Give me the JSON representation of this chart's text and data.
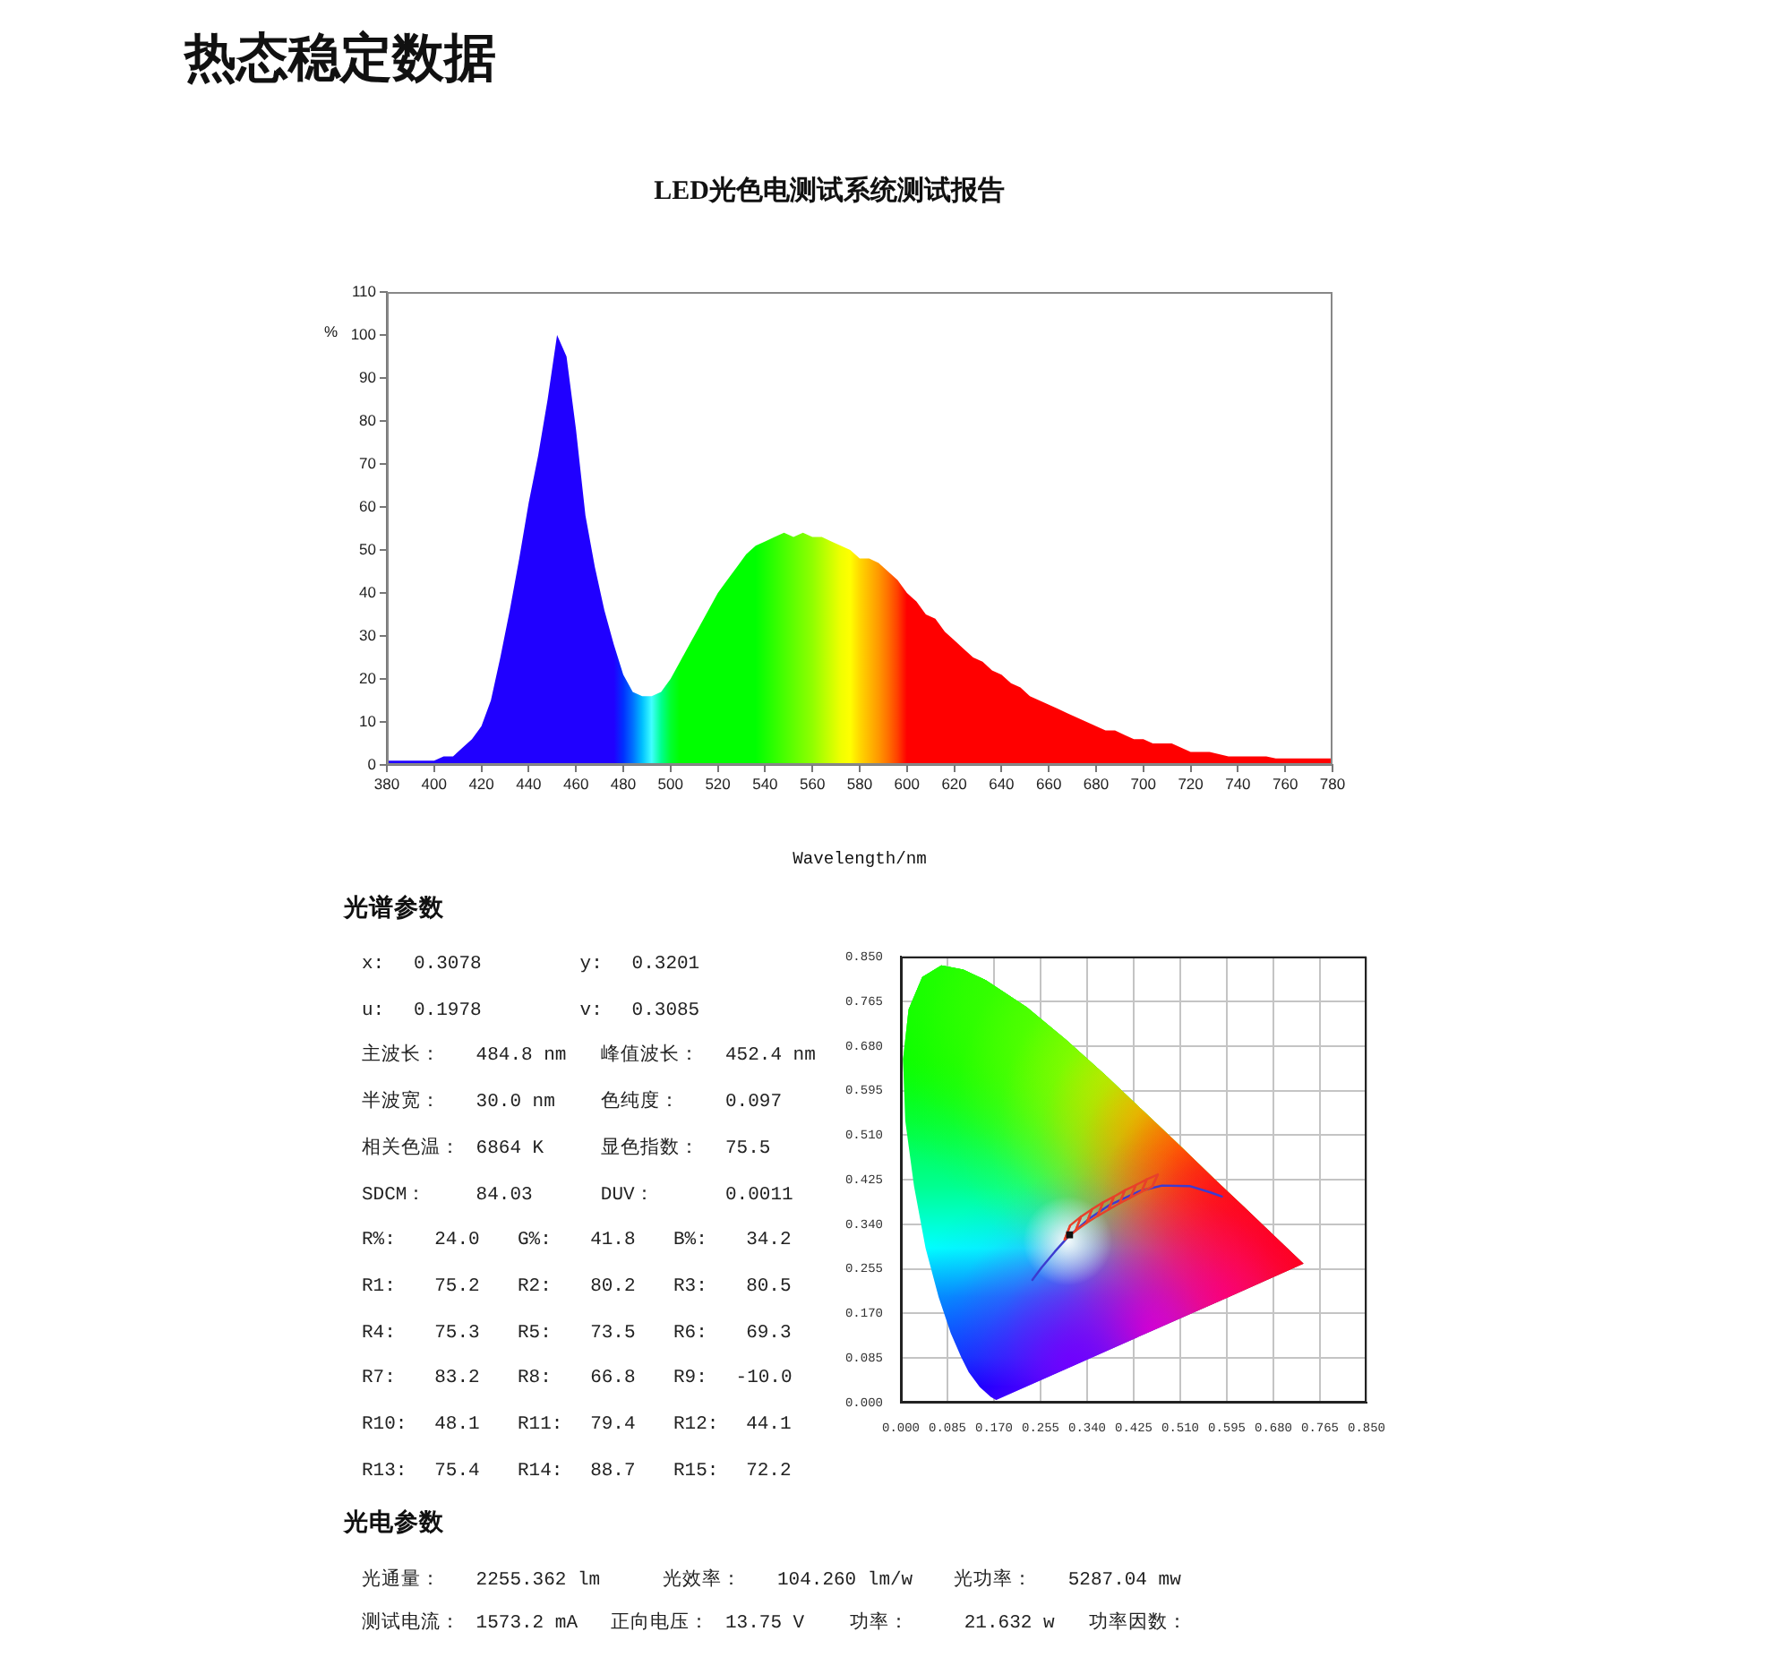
{
  "chart_data": [
    {
      "type": "area",
      "title": "热态稳定数据",
      "subtitle": "LED光色电测试系统测试报告",
      "xlabel": "Wavelength/nm",
      "ylabel": "%",
      "x": [
        380,
        384,
        388,
        392,
        396,
        400,
        404,
        408,
        412,
        416,
        420,
        424,
        428,
        432,
        436,
        440,
        444,
        448,
        452,
        456,
        460,
        464,
        468,
        472,
        476,
        480,
        484,
        488,
        492,
        496,
        500,
        504,
        508,
        512,
        516,
        520,
        524,
        528,
        532,
        536,
        540,
        544,
        548,
        552,
        556,
        560,
        564,
        568,
        572,
        576,
        580,
        584,
        588,
        592,
        596,
        600,
        604,
        608,
        612,
        616,
        620,
        624,
        628,
        632,
        636,
        640,
        644,
        648,
        652,
        656,
        660,
        664,
        668,
        672,
        676,
        680,
        684,
        688,
        692,
        696,
        700,
        704,
        708,
        712,
        716,
        720,
        724,
        728,
        732,
        736,
        740,
        744,
        748,
        752,
        756,
        760,
        764,
        768,
        772,
        776,
        780
      ],
      "values": [
        1,
        1,
        1,
        1,
        1,
        1,
        2,
        2,
        4,
        6,
        9,
        15,
        25,
        36,
        48,
        61,
        72,
        85,
        100,
        95,
        78,
        58,
        46,
        36,
        28,
        21,
        17,
        16,
        16,
        17,
        20,
        24,
        28,
        32,
        36,
        40,
        43,
        46,
        49,
        51,
        52,
        53,
        54,
        53,
        54,
        53,
        53,
        52,
        51,
        50,
        48,
        48,
        47,
        45,
        43,
        40,
        38,
        35,
        34,
        31,
        29,
        27,
        25,
        24,
        22,
        21,
        19,
        18,
        16,
        15,
        14,
        13,
        12,
        11,
        10,
        9,
        8,
        8,
        7,
        6,
        6,
        5,
        5,
        5,
        4,
        3,
        3,
        3,
        2.5,
        2,
        2,
        2,
        2,
        2,
        1.5,
        1.5,
        1.5,
        1.5,
        1.5,
        1.5,
        1.5
      ],
      "colors": [
        "#2000ff",
        "#2000ff",
        "#2000ff",
        "#2000ff",
        "#2000ff",
        "#2000ff",
        "#2000ff",
        "#2000ff",
        "#2000ff",
        "#2000ff",
        "#2000ff",
        "#2000ff",
        "#2000ff",
        "#2000ff",
        "#2000ff",
        "#2000ff",
        "#2000ff",
        "#2000ff",
        "#2000ff",
        "#2000ff",
        "#2000ff",
        "#2000ff",
        "#2000ff",
        "#2000ff",
        "#2000ff",
        "#0030ff",
        "#0070ff",
        "#00c0ff",
        "#40ffff",
        "#00ff90",
        "#00ff30",
        "#00ff00",
        "#00ff00",
        "#00ff00",
        "#00ff00",
        "#00ff00",
        "#00ff00",
        "#00ff00",
        "#00ff00",
        "#00ff00",
        "#18ff00",
        "#30ff00",
        "#48ff00",
        "#60ff00",
        "#78ff00",
        "#90ff00",
        "#b0ff00",
        "#d0ff00",
        "#f0ff00",
        "#ffff00",
        "#ffd800",
        "#ffb800",
        "#ff9800",
        "#ff7000",
        "#ff4000",
        "#ff0000",
        "#ff0000",
        "#ff0000",
        "#ff0000",
        "#ff0000",
        "#ff0000",
        "#ff0000",
        "#ff0000",
        "#ff0000",
        "#ff0000",
        "#ff0000",
        "#ff0000",
        "#ff0000",
        "#ff0000",
        "#ff0000",
        "#ff0000",
        "#ff0000",
        "#ff0000",
        "#ff0000",
        "#ff0000",
        "#ff0000",
        "#ff0000",
        "#ff0000",
        "#ff0000",
        "#ff0000",
        "#ff0000",
        "#ff0000",
        "#ff0000",
        "#ff0000",
        "#ff0000",
        "#ff0000",
        "#ff0000",
        "#ff0000",
        "#ff0000",
        "#ff0000",
        "#ff0000",
        "#ff0000",
        "#ff0000",
        "#ff0000",
        "#ff0000",
        "#ff0000",
        "#ff0000",
        "#ff0000",
        "#ff0000",
        "#ff0000",
        "#ff0000"
      ],
      "xlim": [
        380,
        780
      ],
      "xticks": [
        380,
        400,
        420,
        440,
        460,
        480,
        500,
        520,
        540,
        560,
        580,
        600,
        620,
        640,
        660,
        680,
        700,
        720,
        740,
        760,
        780
      ],
      "ylim": [
        0,
        110
      ],
      "yticks": [
        0,
        10,
        20,
        30,
        40,
        50,
        60,
        70,
        80,
        90,
        100,
        110
      ]
    },
    {
      "type": "other",
      "title": "光谱参数",
      "annotations": [
        "x:   0.3078          y:   0.3201",
        "u:   0.1978          v:   0.3085",
        "主波长：   484.8 nm    峰值波长：  452.4 nm",
        "半波宽：   30.0 nm     色纯度：    0.097",
        "相关色温： 6864 K      显色指数：  75.5",
        "SDCM：     84.03       DUV：       0.0011",
        "R%:    24.0    G%:    41.8    B%:    34.2",
        "R1:    75.2    R2:    80.2    R3:    80.5",
        "R4:    75.3    R5:    73.5    R6:    69.3",
        "R7:    83.2    R8:    66.8    R9:   -10.0",
        "R10:   48.1    R11:   79.4    R12:   44.1",
        "R13:   75.4    R14:   88.7    R15:   72.2"
      ]
    },
    {
      "type": "line",
      "xlim": [
        0,
        0.85
      ],
      "xticks": [
        {
          "value": 0,
          "label": "0.000"
        },
        0.085,
        {
          "value": 0.17,
          "label": "0.170"
        },
        0.255,
        {
          "value": 0.34,
          "label": "0.340"
        },
        0.425,
        {
          "value": 0.51,
          "label": "0.510"
        },
        0.595,
        {
          "value": 0.68,
          "label": "0.680"
        },
        0.765,
        {
          "value": 0.85,
          "label": "0.850"
        }
      ],
      "ylim": [
        0,
        0.85
      ],
      "yticks": [
        {
          "value": 0,
          "label": "0.000"
        },
        0.085,
        {
          "value": 0.17,
          "label": "0.170"
        },
        0.255,
        {
          "value": 0.34,
          "label": "0.340"
        },
        0.425,
        {
          "value": 0.51,
          "label": "0.510"
        },
        0.595,
        {
          "value": 0.68,
          "label": "0.680"
        },
        0.765,
        {
          "value": 0.85,
          "label": "0.850"
        }
      ],
      "grid": true,
      "series": [
        {
          "type": "area",
          "x": [
            0.174,
            0.164,
            0.144,
            0.124,
            0.11,
            0.091,
            0.069,
            0.045,
            0.024,
            0.008,
            0.004,
            0.014,
            0.039,
            0.074,
            0.114,
            0.155,
            0.23,
            0.302,
            0.373,
            0.444,
            0.513,
            0.575,
            0.627,
            0.692,
            0.735,
            0.595,
            0.454,
            0.314
          ],
          "values": [
            0.005,
            0.011,
            0.03,
            0.058,
            0.087,
            0.133,
            0.201,
            0.295,
            0.413,
            0.538,
            0.655,
            0.75,
            0.812,
            0.834,
            0.826,
            0.806,
            0.754,
            0.692,
            0.625,
            0.555,
            0.487,
            0.424,
            0.373,
            0.308,
            0.265,
            0.2,
            0.135,
            0.07
          ],
          "colors": [
            "#2000ff",
            "#1000ff",
            "#0000ff",
            "#0020ff",
            "#0040ff",
            "#0060ff",
            "#0090ff",
            "#00ffff",
            "#00ff90",
            "#00ff40",
            "#00ff00",
            "#00ff00",
            "#00ff00",
            "#00ff00",
            "#10ff00",
            "#20ff00",
            "#30ff00",
            "#40ff00",
            "#70ff00",
            "#c0ff00",
            "#ffc000",
            "#ff5000",
            "#ff2000",
            "#ff0000",
            "#ff0000",
            "#ff0050",
            "#ff00c0",
            "#7000ff"
          ]
        },
        {
          "type": "line",
          "color": "#3b3bd0",
          "x": [
            0.24,
            0.257,
            0.281,
            0.306,
            0.345,
            0.381,
            0.437,
            0.477,
            0.527,
            0.565,
            0.586
          ],
          "values": [
            0.234,
            0.258,
            0.288,
            0.317,
            0.352,
            0.377,
            0.404,
            0.414,
            0.413,
            0.401,
            0.393
          ]
        },
        {
          "type": "line",
          "color": "#e8402a",
          "x": [
            0.299,
            0.309,
            0.329,
            0.319,
            0.339,
            0.349,
            0.369,
            0.359,
            0.379,
            0.389,
            0.409,
            0.399,
            0.419,
            0.429,
            0.449,
            0.439,
            0.459,
            0.469
          ],
          "values": [
            0.311,
            0.338,
            0.355,
            0.328,
            0.343,
            0.369,
            0.382,
            0.356,
            0.368,
            0.393,
            0.405,
            0.38,
            0.391,
            0.415,
            0.426,
            0.402,
            0.412,
            0.435
          ]
        },
        {
          "type": "line",
          "color": "#e8402a",
          "x": [
            0.309,
            0.299,
            0.319,
            0.329,
            0.349,
            0.339,
            0.359,
            0.369,
            0.389,
            0.379,
            0.399,
            0.409,
            0.429,
            0.419,
            0.439,
            0.449,
            0.469,
            0.459
          ],
          "values": [
            0.338,
            0.311,
            0.328,
            0.355,
            0.369,
            0.343,
            0.356,
            0.382,
            0.393,
            0.368,
            0.38,
            0.405,
            0.415,
            0.391,
            0.402,
            0.426,
            0.435,
            0.412
          ]
        },
        {
          "type": "scatter",
          "color": "#111111",
          "marker": "square",
          "x": [
            0.308
          ],
          "values": [
            0.32
          ]
        }
      ]
    },
    {
      "type": "other",
      "title": "光电参数",
      "annotations": [
        "光通量：   2255.362 lm       光效率：   104.260 lm/w     光功率：   5287.04 mw",
        "测试电流： 1573.2 mA    正向电压： 13.75 V     功率：     21.632 w    功率因数："
      ]
    }
  ]
}
